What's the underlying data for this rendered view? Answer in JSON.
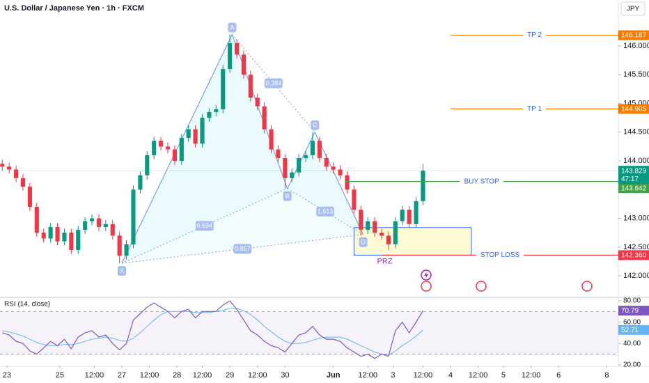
{
  "chart_data": {
    "type": "candlestick",
    "title": "U.S. Dollar / Japanese Yen · 1h · FXCM",
    "currency": "JPY",
    "up_color": "#089981",
    "down_color": "#f23645",
    "x": [
      -2,
      1,
      4,
      7,
      10,
      13,
      16,
      19,
      22,
      25,
      28,
      31,
      34,
      37,
      40,
      43,
      46,
      49,
      52,
      55,
      58,
      61,
      64,
      67,
      70,
      73,
      76,
      79,
      82,
      85,
      88,
      91,
      94,
      97,
      100,
      103,
      106,
      109,
      112,
      115,
      118,
      121,
      124,
      127,
      130,
      133,
      136,
      139,
      142,
      145,
      148,
      151,
      154,
      157,
      160,
      163,
      166,
      169,
      172,
      175,
      178,
      181
    ],
    "open": [
      143.95,
      143.9,
      143.85,
      143.7,
      143.55,
      143.2,
      142.75,
      142.65,
      142.85,
      142.6,
      142.75,
      142.45,
      142.8,
      142.95,
      143.0,
      142.85,
      142.9,
      142.7,
      142.35,
      142.55,
      143.5,
      143.75,
      144.1,
      144.35,
      144.25,
      144.2,
      144.0,
      144.4,
      144.55,
      144.3,
      144.75,
      144.85,
      144.9,
      145.6,
      146.05,
      145.85,
      145.5,
      145.1,
      144.95,
      144.55,
      144.2,
      144.05,
      143.7,
      143.8,
      144.05,
      144.1,
      144.35,
      144.05,
      143.9,
      143.85,
      143.75,
      143.5,
      143.15,
      142.8,
      142.95,
      142.75,
      142.7,
      142.55,
      142.95,
      143.15,
      142.9,
      143.3
    ],
    "high": [
      144.02,
      143.97,
      143.92,
      143.77,
      143.62,
      143.27,
      142.82,
      142.92,
      142.92,
      142.82,
      142.82,
      142.87,
      143.02,
      143.07,
      143.07,
      142.97,
      142.97,
      142.77,
      142.62,
      143.57,
      143.82,
      144.17,
      144.42,
      144.42,
      144.32,
      144.27,
      144.47,
      144.62,
      144.62,
      144.82,
      144.92,
      144.97,
      145.67,
      146.2,
      146.12,
      145.92,
      145.57,
      145.17,
      145.02,
      144.62,
      144.27,
      144.12,
      143.87,
      144.12,
      144.17,
      144.5,
      144.42,
      144.12,
      143.97,
      143.92,
      143.82,
      143.57,
      143.22,
      143.02,
      143.02,
      142.82,
      142.77,
      143.02,
      143.22,
      143.22,
      143.37,
      143.95
    ],
    "low": [
      143.83,
      143.78,
      143.63,
      143.48,
      143.13,
      142.68,
      142.58,
      142.58,
      142.53,
      142.53,
      142.38,
      142.38,
      142.73,
      142.88,
      142.78,
      142.78,
      142.63,
      142.22,
      142.28,
      142.48,
      143.43,
      143.68,
      144.03,
      144.18,
      144.13,
      143.93,
      143.93,
      144.33,
      144.23,
      144.23,
      144.68,
      144.78,
      144.83,
      145.53,
      145.78,
      145.43,
      145.03,
      144.88,
      144.48,
      144.13,
      143.98,
      143.52,
      143.63,
      143.73,
      143.98,
      144.03,
      143.98,
      143.83,
      143.78,
      143.68,
      143.43,
      143.08,
      142.7,
      142.73,
      142.68,
      142.63,
      142.45,
      142.48,
      142.88,
      142.83,
      142.83,
      143.23
    ],
    "close": [
      143.9,
      143.85,
      143.7,
      143.55,
      143.2,
      142.75,
      142.65,
      142.85,
      142.6,
      142.75,
      142.45,
      142.8,
      142.95,
      143.0,
      142.85,
      142.9,
      142.7,
      142.35,
      142.55,
      143.5,
      143.75,
      144.1,
      144.35,
      144.25,
      144.2,
      144.0,
      144.4,
      144.55,
      144.3,
      144.75,
      144.85,
      144.9,
      145.6,
      146.05,
      145.85,
      145.5,
      145.1,
      144.95,
      144.55,
      144.2,
      144.05,
      143.7,
      143.8,
      144.05,
      144.1,
      144.35,
      144.05,
      143.9,
      143.85,
      143.75,
      143.5,
      143.15,
      142.8,
      142.95,
      142.75,
      142.7,
      142.55,
      142.95,
      143.15,
      142.9,
      143.3,
      143.83
    ],
    "xlim": [
      -3,
      266
    ],
    "xticks": [
      {
        "value": 0,
        "label": "23"
      },
      {
        "value": 23,
        "label": "25"
      },
      {
        "value": 38,
        "label": "12:00"
      },
      {
        "value": 50,
        "label": "27"
      },
      {
        "value": 62,
        "label": "12:00"
      },
      {
        "value": 74,
        "label": "28"
      },
      {
        "value": 85,
        "label": "12:00"
      },
      {
        "value": 97,
        "label": "29"
      },
      {
        "value": 109,
        "label": "12:00"
      },
      {
        "value": 121,
        "label": "30"
      },
      {
        "value": 142,
        "label": "Jun"
      },
      {
        "value": 157,
        "label": "12:00"
      },
      {
        "value": 168,
        "label": "3"
      },
      {
        "value": 181,
        "label": "12:00"
      },
      {
        "value": 193,
        "label": "4"
      },
      {
        "value": 205,
        "label": "12:00"
      },
      {
        "value": 216,
        "label": "5"
      },
      {
        "value": 228,
        "label": "12:00"
      },
      {
        "value": 240,
        "label": "6"
      },
      {
        "value": 261,
        "label": "8"
      }
    ],
    "ylim": [
      141.65,
      146.8
    ],
    "yticks": [
      {
        "value": 146,
        "label": "146.000"
      },
      {
        "value": 145.5,
        "label": "145.500"
      },
      {
        "value": 145,
        "label": "145.000"
      },
      {
        "value": 144.5,
        "label": "144.500"
      },
      {
        "value": 144,
        "label": "144.000"
      },
      {
        "value": 143,
        "label": "143.000"
      },
      {
        "value": 142.5,
        "label": "142.500"
      },
      {
        "value": 142,
        "label": "142.000"
      }
    ],
    "last_price": 143.829,
    "last_price_color": "#089981",
    "countdown": "47:17",
    "levels": [
      {
        "name": "TP 2",
        "value": 146.187,
        "value_label": "146.187",
        "color": "#f57c00",
        "text_color": "#2962ff",
        "x_start": 193
      },
      {
        "name": "TP 1",
        "value": 144.905,
        "value_label": "144.905",
        "color": "#f57c00",
        "text_color": "#2962ff",
        "x_start": 193
      },
      {
        "name": "BUY STOP",
        "value": 143.642,
        "value_label": "143.642",
        "color": "#43a047",
        "text_color": "#2962ff",
        "x_start": 147
      },
      {
        "name": "STOP LOSS",
        "value": 142.36,
        "value_label": "142.360",
        "color": "#f23645",
        "text_color": "#2962ff",
        "x_start": 163
      }
    ],
    "pattern": {
      "color": "#7b9fe0",
      "points": [
        {
          "label": "X",
          "x": 50,
          "y": 142.22
        },
        {
          "label": "A",
          "x": 98,
          "y": 146.2
        },
        {
          "label": "B",
          "x": 122,
          "y": 143.52
        },
        {
          "label": "C",
          "x": 134,
          "y": 144.5
        },
        {
          "label": "D",
          "x": 155,
          "y": 142.72
        }
      ],
      "ratios": [
        {
          "label": "0.384",
          "from": 1,
          "to": 3
        },
        {
          "label": "0.694",
          "from": 0,
          "to": 2
        },
        {
          "label": "0.857",
          "from": 0,
          "to": 4
        },
        {
          "label": "1.613",
          "from": 2,
          "to": 4
        }
      ]
    },
    "prz": {
      "label": "PRZ",
      "top": 142.84,
      "bottom": 142.36,
      "x_start": 151,
      "x_end": 202,
      "color": "#9c27b0"
    },
    "rsi": {
      "title": "RSI (14, close)",
      "color": "#7e57c2",
      "ma_color": "#64b5f6",
      "values": [
        50,
        48,
        42,
        40,
        33,
        30,
        36,
        42,
        38,
        44,
        35,
        46,
        50,
        52,
        46,
        48,
        40,
        34,
        40,
        62,
        68,
        74,
        78,
        74,
        70,
        64,
        70,
        72,
        64,
        70,
        70,
        70,
        76,
        80,
        72,
        62,
        52,
        48,
        42,
        38,
        36,
        32,
        40,
        48,
        50,
        56,
        48,
        44,
        44,
        42,
        36,
        32,
        28,
        30,
        26,
        30,
        28,
        52,
        60,
        50,
        60,
        70.79
      ],
      "ma": [
        52,
        51,
        49,
        47,
        44,
        41,
        39,
        38,
        38,
        39,
        39,
        40,
        42,
        44,
        45,
        46,
        45,
        43,
        42,
        45,
        50,
        56,
        62,
        67,
        70,
        70,
        70,
        70,
        69,
        69,
        69,
        70,
        71,
        73,
        73,
        71,
        67,
        62,
        56,
        51,
        46,
        42,
        40,
        40,
        41,
        43,
        45,
        46,
        46,
        46,
        44,
        41,
        38,
        35,
        32,
        30,
        29,
        33,
        38,
        42,
        47,
        52.71
      ],
      "ylim": [
        19.3,
        82.6
      ],
      "yticks": [
        {
          "value": 80,
          "label": "80.00"
        },
        {
          "value": 60,
          "label": "60.00"
        },
        {
          "value": 40,
          "label": "40.00"
        },
        {
          "value": 20,
          "label": "20.00"
        }
      ],
      "bands": [
        70,
        30
      ]
    }
  }
}
